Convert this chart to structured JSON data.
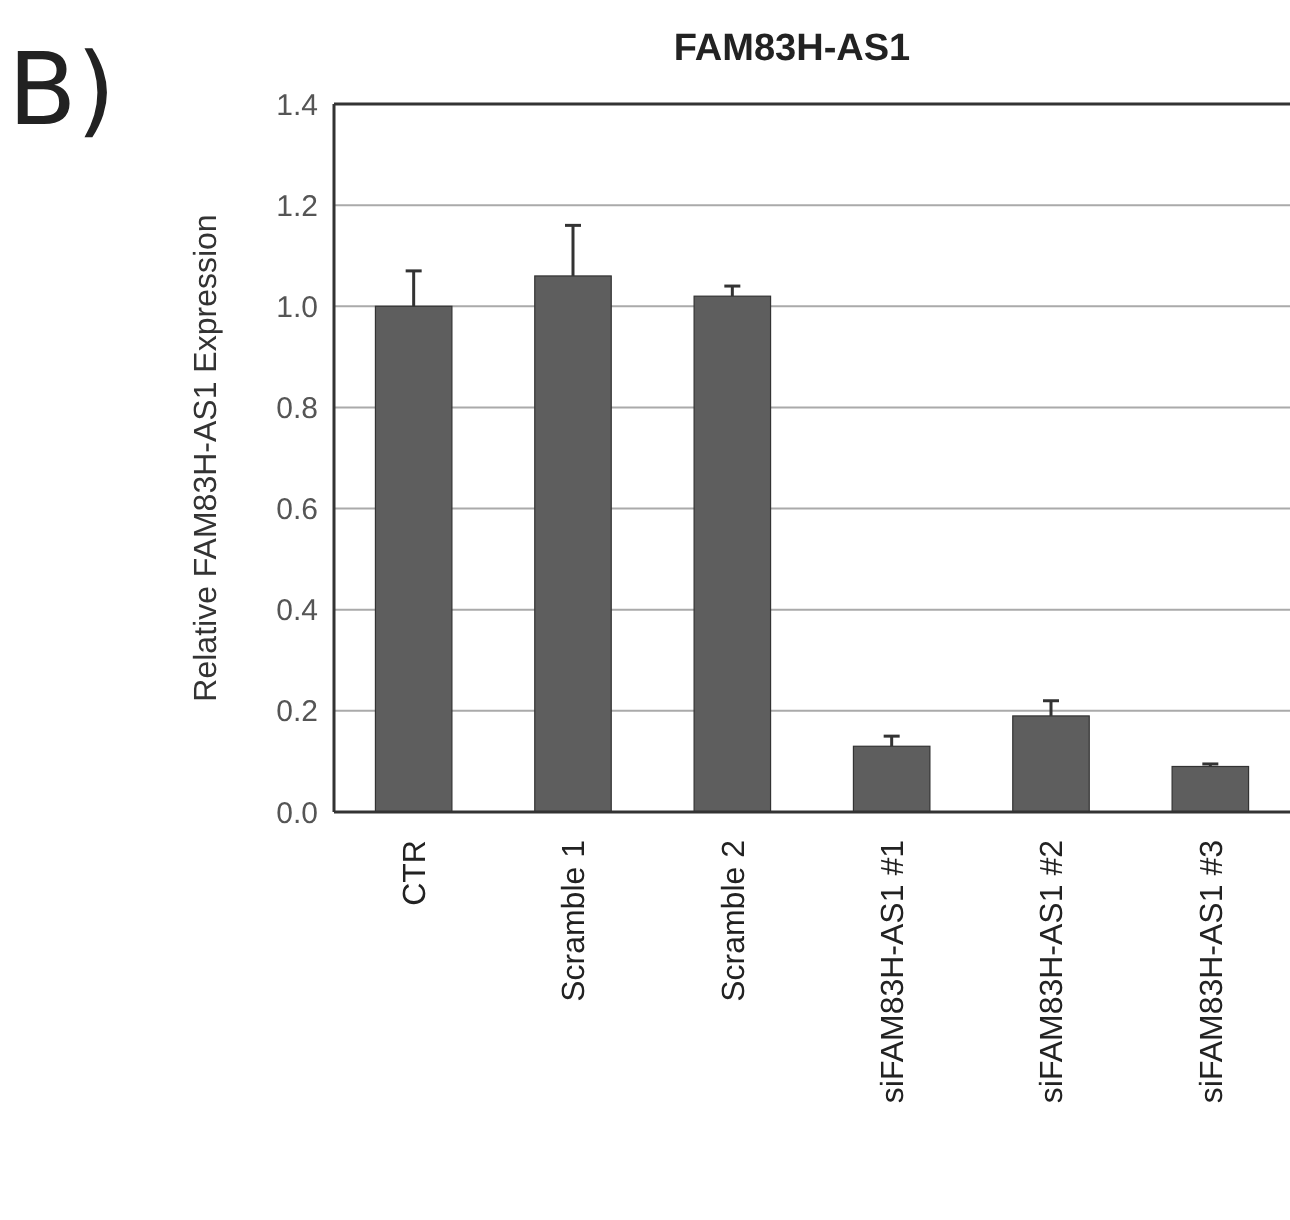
{
  "chart_data": {
    "type": "bar",
    "title": "FAM83H-AS1",
    "ylabel": "Relative FAM83H-AS1 Expression",
    "annotations": [
      "B)"
    ],
    "categories": [
      "CTR",
      "Scramble 1",
      "Scramble 2",
      "siFAM83H-AS1 #1",
      "siFAM83H-AS1 #2",
      "siFAM83H-AS1 #3"
    ],
    "values": [
      1.0,
      1.06,
      1.02,
      0.13,
      0.19,
      0.09
    ],
    "errors": [
      0.07,
      0.1,
      0.02,
      0.02,
      0.03,
      0.005
    ],
    "color": "#5e5e5e",
    "ylim": [
      0,
      1.4
    ],
    "yticks": [
      {
        "value": 0,
        "label": "0.0"
      },
      {
        "value": 0.2,
        "label": "0.2"
      },
      {
        "value": 0.4,
        "label": "0.4"
      },
      {
        "value": 0.6,
        "label": "0.6"
      },
      {
        "value": 0.8,
        "label": "0.8"
      },
      {
        "value": 1,
        "label": "1.0"
      },
      {
        "value": 1.2,
        "label": "1.2"
      },
      {
        "value": 1.4,
        "label": "1.4"
      }
    ],
    "grid": "y"
  }
}
